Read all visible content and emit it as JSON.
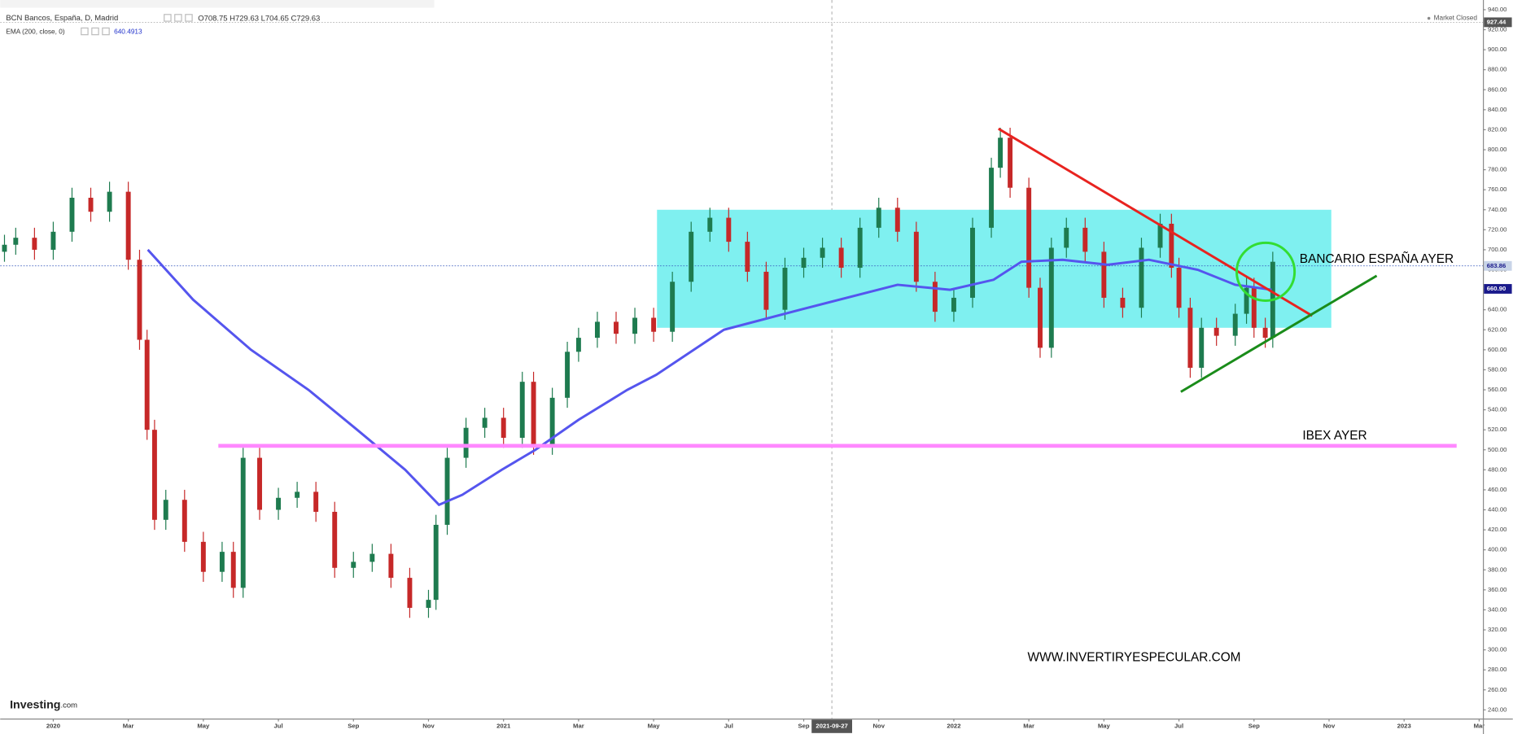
{
  "header": {
    "symbol": "BCN Bancos, España, D, Madrid",
    "ohlc": [
      "O708.75",
      "H729.63",
      "L704.65",
      "C729.63"
    ],
    "indicator": "EMA (200, close, 0)",
    "indicator_value": "640.4913",
    "status": "Market Closed",
    "logo": "Investing",
    "logo_suffix": ".com"
  },
  "chart_data": {
    "type": "candlestick",
    "x": [
      -1.3,
      -1.0,
      -0.5,
      0,
      0.5,
      1.0,
      1.5,
      2.0,
      2.3,
      2.5,
      2.7,
      3.0,
      3.5,
      4.0,
      4.5,
      4.8,
      5.06,
      5.5,
      6.0,
      6.5,
      7.0,
      7.5,
      8.0,
      8.5,
      9.0,
      9.5,
      10.0,
      10.2,
      10.5,
      11.0,
      11.5,
      12.0,
      12.5,
      12.8,
      13.3,
      13.7,
      14.0,
      14.5,
      15.0,
      15.5,
      16.0,
      16.5,
      17.0,
      17.5,
      18.0,
      18.5,
      19.0,
      19.5,
      20.0,
      20.5,
      21.0,
      21.5,
      22.0,
      22.5,
      23.0,
      23.5,
      24.0,
      24.5,
      25.0,
      25.24,
      25.5,
      26.0,
      26.3,
      26.6,
      27.0,
      27.5,
      28.0,
      28.5,
      29.0,
      29.5,
      29.8,
      30.0,
      30.3,
      30.6,
      31.0,
      31.5,
      31.8,
      32.0,
      32.3,
      32.5
    ],
    "open": [
      698,
      705,
      712,
      700,
      718,
      752,
      738,
      758,
      690,
      610,
      520,
      430,
      450,
      408,
      378,
      398,
      362,
      492,
      440,
      452,
      458,
      438,
      382,
      388,
      396,
      372,
      342,
      350,
      425,
      492,
      522,
      532,
      512,
      568,
      505,
      552,
      598,
      612,
      628,
      616,
      632,
      618,
      668,
      718,
      732,
      708,
      678,
      640,
      682,
      692,
      702,
      682,
      722,
      742,
      718,
      668,
      638,
      652,
      722,
      782,
      812,
      762,
      662,
      602,
      702,
      722,
      698,
      652,
      642,
      702,
      726,
      682,
      642,
      582,
      622,
      614,
      636,
      662,
      622,
      612
    ],
    "high": [
      715,
      722,
      722,
      728,
      762,
      762,
      768,
      768,
      700,
      620,
      530,
      460,
      460,
      418,
      408,
      408,
      502,
      502,
      462,
      468,
      468,
      448,
      398,
      406,
      406,
      382,
      360,
      435,
      502,
      532,
      542,
      542,
      578,
      578,
      562,
      608,
      622,
      638,
      638,
      642,
      642,
      678,
      728,
      742,
      742,
      718,
      688,
      692,
      702,
      712,
      712,
      732,
      752,
      752,
      728,
      678,
      662,
      732,
      792,
      822,
      822,
      772,
      672,
      712,
      732,
      732,
      708,
      662,
      712,
      736,
      736,
      692,
      652,
      632,
      632,
      646,
      672,
      672,
      632,
      698
    ],
    "low": [
      688,
      695,
      690,
      690,
      708,
      728,
      728,
      680,
      600,
      510,
      420,
      420,
      398,
      368,
      368,
      352,
      352,
      430,
      430,
      442,
      428,
      372,
      372,
      378,
      362,
      332,
      332,
      340,
      415,
      482,
      512,
      502,
      502,
      495,
      495,
      542,
      588,
      602,
      606,
      606,
      608,
      608,
      658,
      708,
      698,
      668,
      630,
      630,
      672,
      682,
      672,
      672,
      712,
      708,
      658,
      628,
      628,
      642,
      712,
      772,
      752,
      652,
      592,
      592,
      692,
      688,
      642,
      632,
      632,
      692,
      672,
      632,
      572,
      572,
      604,
      604,
      626,
      612,
      602,
      602
    ],
    "close": [
      705,
      712,
      700,
      718,
      752,
      738,
      758,
      690,
      610,
      520,
      430,
      450,
      408,
      378,
      398,
      362,
      492,
      440,
      452,
      458,
      438,
      382,
      388,
      396,
      372,
      342,
      350,
      425,
      492,
      522,
      532,
      512,
      568,
      505,
      552,
      598,
      612,
      628,
      616,
      632,
      618,
      668,
      718,
      732,
      708,
      678,
      640,
      682,
      692,
      702,
      682,
      722,
      742,
      718,
      668,
      638,
      652,
      722,
      782,
      812,
      762,
      662,
      602,
      702,
      722,
      698,
      652,
      642,
      702,
      726,
      682,
      642,
      582,
      622,
      614,
      636,
      662,
      622,
      612,
      688
    ],
    "up_color": "#1e7b4f",
    "down_color": "#c62828",
    "overlay": {
      "color": "#5555ee",
      "x": [
        2.52,
        3.73,
        5.27,
        6.8,
        8.1,
        9.38,
        10.28,
        10.9,
        11.95,
        12.85,
        14.0,
        15.3,
        16.07,
        17.87,
        19.9,
        22.5,
        23.9,
        25.06,
        25.8,
        26.9,
        28.1,
        29.2,
        30.5,
        31.5,
        32.47
      ],
      "values": [
        700,
        650,
        600,
        560,
        520,
        480,
        445,
        455,
        480,
        500,
        530,
        560,
        575,
        620,
        640,
        665,
        660,
        670,
        688,
        690,
        685,
        690,
        680,
        665,
        660
      ]
    },
    "xlim": [
      -1.414,
      38.1
    ],
    "ylim": [
      231.3,
      949.7
    ],
    "xticks": [
      {
        "value": 0,
        "label": "2020"
      },
      {
        "value": 2,
        "label": "Mar"
      },
      {
        "value": 4,
        "label": "May"
      },
      {
        "value": 6,
        "label": "Jul"
      },
      {
        "value": 8,
        "label": "Sep"
      },
      {
        "value": 10,
        "label": "Nov"
      },
      {
        "value": 12,
        "label": "2021"
      },
      {
        "value": 14,
        "label": "Mar"
      },
      {
        "value": 16,
        "label": "May"
      },
      {
        "value": 18,
        "label": "Jul"
      },
      {
        "value": 20,
        "label": "Sep"
      },
      {
        "value": 22,
        "label": "Nov"
      },
      {
        "value": 24,
        "label": "2022"
      },
      {
        "value": 26,
        "label": "Mar"
      },
      {
        "value": 28,
        "label": "May"
      },
      {
        "value": 30,
        "label": "Jul"
      },
      {
        "value": 32,
        "label": "Sep"
      },
      {
        "value": 34,
        "label": "Nov"
      },
      {
        "value": 36,
        "label": "2023"
      },
      {
        "value": 38,
        "label": "Mar"
      }
    ],
    "yticks": [
      {
        "value": 240,
        "label": "240.00"
      },
      {
        "value": 260,
        "label": "260.00"
      },
      {
        "value": 280,
        "label": "280.00"
      },
      {
        "value": 300,
        "label": "300.00"
      },
      {
        "value": 320,
        "label": "320.00"
      },
      {
        "value": 340,
        "label": "340.00"
      },
      {
        "value": 360,
        "label": "360.00"
      },
      {
        "value": 380,
        "label": "380.00"
      },
      {
        "value": 400,
        "label": "400.00"
      },
      {
        "value": 420,
        "label": "420.00"
      },
      {
        "value": 440,
        "label": "440.00"
      },
      {
        "value": 460,
        "label": "460.00"
      },
      {
        "value": 480,
        "label": "480.00"
      },
      {
        "value": 500,
        "label": "500.00"
      },
      {
        "value": 520,
        "label": "520.00"
      },
      {
        "value": 540,
        "label": "540.00"
      },
      {
        "value": 560,
        "label": "560.00"
      },
      {
        "value": 580,
        "label": "580.00"
      },
      {
        "value": 600,
        "label": "600.00"
      },
      {
        "value": 620,
        "label": "620.00"
      },
      {
        "value": 640,
        "label": "640.00"
      },
      {
        "value": 660,
        "label": "660.00"
      },
      {
        "value": 680,
        "label": "680.00"
      },
      {
        "value": 700,
        "label": "700.00"
      },
      {
        "value": 720,
        "label": "720.00"
      },
      {
        "value": 740,
        "label": "740.00"
      },
      {
        "value": 760,
        "label": "760.00"
      },
      {
        "value": 780,
        "label": "780.00"
      },
      {
        "value": 800,
        "label": "800.00"
      },
      {
        "value": 820,
        "label": "820.00"
      },
      {
        "value": 840,
        "label": "840.00"
      },
      {
        "value": 860,
        "label": "860.00"
      },
      {
        "value": 880,
        "label": "880.00"
      },
      {
        "value": 900,
        "label": "900.00"
      },
      {
        "value": 920,
        "label": "920.00"
      },
      {
        "value": 940,
        "label": "940.00"
      }
    ],
    "price_labels": [
      {
        "value": 927.44,
        "label": "927.44",
        "color": "#555555",
        "line": "#aaaaaa"
      },
      {
        "value": 683.86,
        "label": "683.86",
        "color": "#c8d4e8",
        "line": "#3355bb"
      },
      {
        "value": 660.9,
        "label": "660.90",
        "color": "#1a1a8c",
        "line": null
      }
    ],
    "crosshair": {
      "value": 20.75,
      "label": "2021-09-27"
    },
    "range_box": {
      "x": [
        16.09,
        34.06
      ],
      "y": [
        622,
        740
      ],
      "color": "#7ff0f0"
    },
    "level_line": {
      "x": [
        4.4,
        37.4
      ],
      "y": 504,
      "color": "#ff88ff"
    },
    "trend_lines": [
      {
        "x": [
          25.19,
          33.55
        ],
        "y": [
          821,
          634
        ],
        "color": "#e8231f"
      },
      {
        "x": [
          30.05,
          35.27
        ],
        "y": [
          558,
          674
        ],
        "color": "#1a8c1a"
      }
    ],
    "circle": {
      "x": 32.31,
      "y": 678,
      "color": "#33dd33"
    },
    "annotations": [
      "BANCARIO ESPAÑA AYER",
      "IBEX AYER",
      "WWW.INVERTIRYESPECULAR.COM"
    ]
  }
}
